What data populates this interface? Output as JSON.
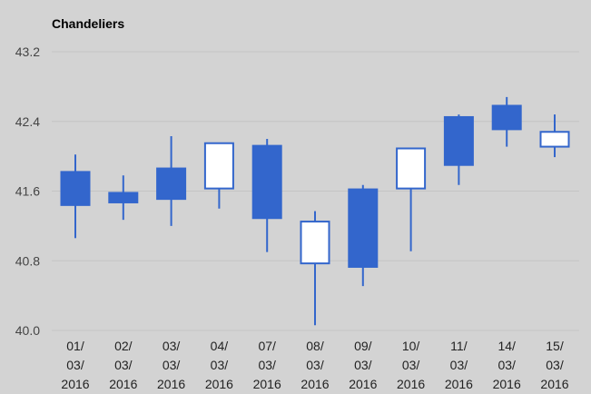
{
  "chart_data": {
    "type": "candlestick",
    "title": "Chandeliers",
    "xlabel": "",
    "ylabel": "",
    "ylim": [
      40.0,
      43.2
    ],
    "yticks": [
      "40.0",
      "40.8",
      "41.6",
      "42.4",
      "43.2"
    ],
    "grid": true,
    "legend": "none",
    "categories": [
      [
        "01/",
        "03/",
        "2016"
      ],
      [
        "02/",
        "03/",
        "2016"
      ],
      [
        "03/",
        "03/",
        "2016"
      ],
      [
        "04/",
        "03/",
        "2016"
      ],
      [
        "07/",
        "03/",
        "2016"
      ],
      [
        "08/",
        "03/",
        "2016"
      ],
      [
        "09/",
        "03/",
        "2016"
      ],
      [
        "10/",
        "03/",
        "2016"
      ],
      [
        "11/",
        "03/",
        "2016"
      ],
      [
        "14/",
        "03/",
        "2016"
      ],
      [
        "15/",
        "03/",
        "2016"
      ]
    ],
    "series": [
      {
        "candles": [
          {
            "low": 41.06,
            "open": 41.82,
            "close": 41.44,
            "high": 42.02
          },
          {
            "low": 41.27,
            "open": 41.58,
            "close": 41.47,
            "high": 41.78
          },
          {
            "low": 41.2,
            "open": 41.86,
            "close": 41.51,
            "high": 42.23
          },
          {
            "low": 41.4,
            "open": 41.63,
            "close": 42.15,
            "high": 42.15
          },
          {
            "low": 40.9,
            "open": 42.12,
            "close": 41.29,
            "high": 42.2
          },
          {
            "low": 40.06,
            "open": 40.77,
            "close": 41.25,
            "high": 41.37
          },
          {
            "low": 40.51,
            "open": 41.62,
            "close": 40.73,
            "high": 41.67
          },
          {
            "low": 40.91,
            "open": 41.63,
            "close": 42.09,
            "high": 42.09
          },
          {
            "low": 41.67,
            "open": 42.45,
            "close": 41.9,
            "high": 42.48
          },
          {
            "low": 42.11,
            "open": 42.58,
            "close": 42.31,
            "high": 42.68
          },
          {
            "low": 41.99,
            "open": 42.11,
            "close": 42.28,
            "high": 42.48
          }
        ]
      }
    ]
  },
  "colors": {
    "rising": "#3366cc",
    "falling": "#ffffff",
    "background": "#d3d3d3",
    "grid": "#c4c4c4"
  }
}
